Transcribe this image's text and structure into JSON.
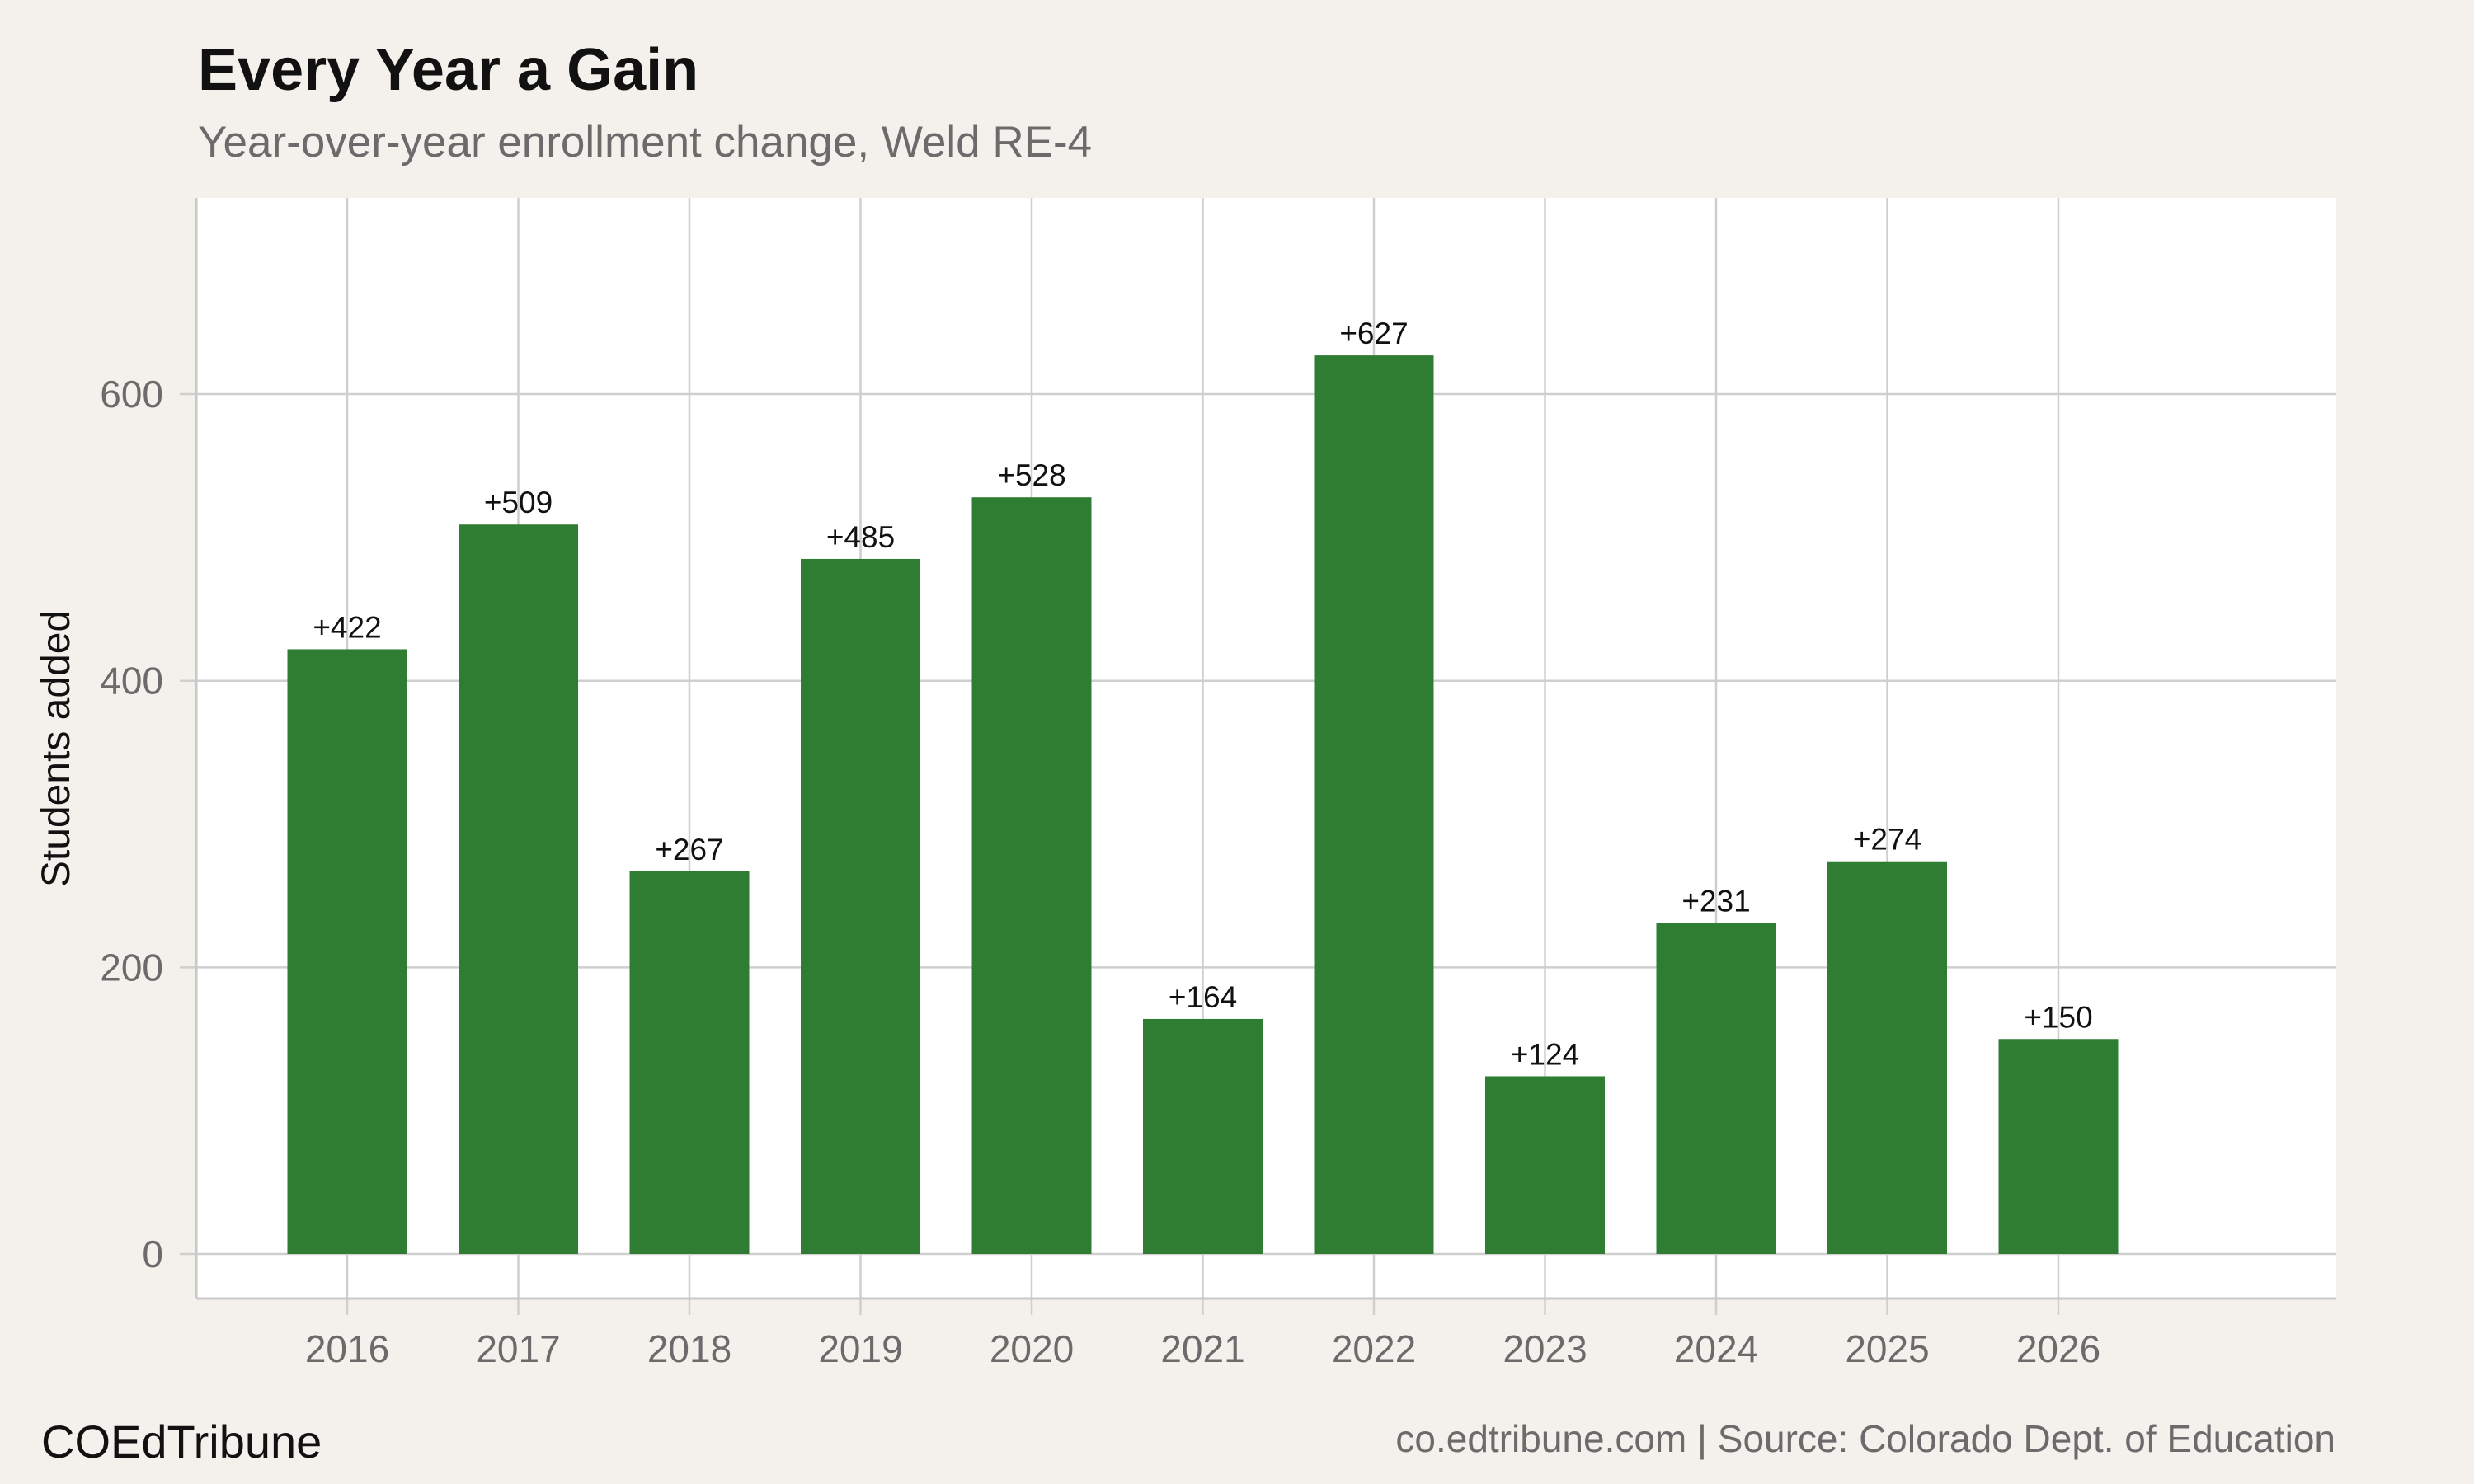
{
  "header": {
    "title": "Every Year a Gain",
    "subtitle": "Year-over-year enrollment change, Weld RE-4"
  },
  "footer": {
    "brand": "COEdTribune",
    "source": "co.edtribune.com | Source: Colorado Dept. of Education"
  },
  "colors": {
    "bar": "#2f7d32",
    "panel": "#ffffff",
    "background": "#f4f1ec",
    "grid": "#cfcfcf",
    "axis_text": "#6b6b6b"
  },
  "chart_data": {
    "type": "bar",
    "categories": [
      "2016",
      "2017",
      "2018",
      "2019",
      "2020",
      "2021",
      "2022",
      "2023",
      "2024",
      "2025",
      "2026"
    ],
    "values": [
      422,
      509,
      267,
      485,
      528,
      164,
      627,
      124,
      231,
      274,
      150
    ],
    "data_labels": [
      "+422",
      "+509",
      "+267",
      "+485",
      "+528",
      "+164",
      "+627",
      "+124",
      "+231",
      "+274",
      "+150"
    ],
    "ylabel": "Students added",
    "ylim": [
      0,
      740
    ],
    "yticks": [
      0,
      200,
      400,
      600
    ],
    "ytick_labels": [
      "0",
      "200",
      "400",
      "600"
    ],
    "grid": true,
    "legend": "none"
  }
}
